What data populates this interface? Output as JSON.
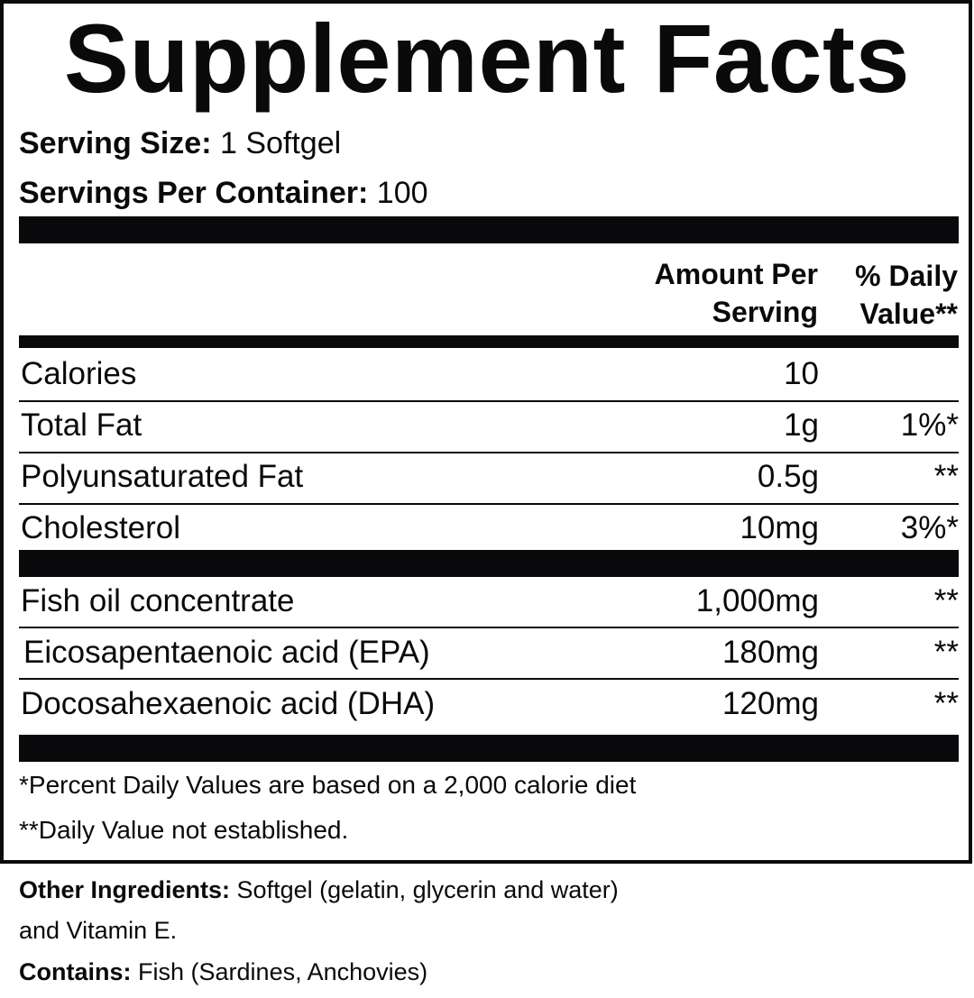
{
  "title": "Supplement Facts",
  "serving_size": {
    "label": "Serving Size:",
    "value": "1 Softgel"
  },
  "servings_per_container": {
    "label": "Servings Per Container:",
    "value": "100"
  },
  "columns": {
    "amount_line1": "Amount Per",
    "amount_line2": "Serving",
    "dv_line1": "% Daily",
    "dv_line2": "Value**"
  },
  "rows": [
    {
      "name": "Calories",
      "amount": "10",
      "dv": ""
    },
    {
      "name": "Total Fat",
      "amount": "1g",
      "dv": "1%*"
    },
    {
      "name": "Polyunsaturated Fat",
      "amount": "0.5g",
      "dv": "**"
    },
    {
      "name": "Cholesterol",
      "amount": "10mg",
      "dv": "3%*"
    },
    {
      "name": "Fish oil concentrate",
      "amount": "1,000mg",
      "dv": "**"
    },
    {
      "name": "Eicosapentaenoic acid (EPA)",
      "amount": "180mg",
      "dv": "**"
    },
    {
      "name": "Docosahexaenoic acid (DHA)",
      "amount": "120mg",
      "dv": "**"
    }
  ],
  "footnotes": [
    "*Percent Daily Values are based on a 2,000 calorie diet",
    "**Daily Value not established."
  ],
  "other_ingredients": {
    "label": "Other Ingredients:",
    "line1": "Softgel (gelatin, glycerin and water)",
    "line2": "and Vitamin E."
  },
  "contains": {
    "label": "Contains:",
    "value": "Fish (Sardines, Anchovies)"
  }
}
